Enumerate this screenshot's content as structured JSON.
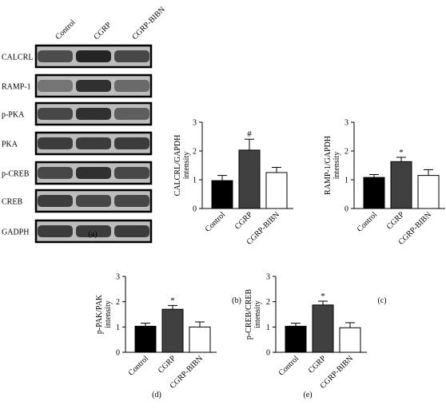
{
  "blot": {
    "lanes": [
      "Control",
      "CGRP",
      "CGRP-BIBN"
    ],
    "rows": [
      {
        "label": "CALCRL",
        "intensity": [
          0.78,
          0.95,
          0.8
        ]
      },
      {
        "label": "RAMP-1",
        "intensity": [
          0.6,
          0.9,
          0.65
        ]
      },
      {
        "label": "p-PKA",
        "intensity": [
          0.8,
          0.9,
          0.7
        ]
      },
      {
        "label": "PKA",
        "intensity": [
          0.85,
          0.85,
          0.85
        ]
      },
      {
        "label": "p-CREB",
        "intensity": [
          0.8,
          0.9,
          0.8
        ]
      },
      {
        "label": "CREB",
        "intensity": [
          0.85,
          0.8,
          0.8
        ]
      },
      {
        "label": "GADPH",
        "intensity": [
          0.85,
          0.85,
          0.85
        ]
      }
    ],
    "panel_label": "(a)"
  },
  "chart_data": [
    {
      "type": "bar",
      "panel_label": "(b)",
      "categories": [
        "Control",
        "CGRP",
        "CGRP-BIBN"
      ],
      "values": [
        0.97,
        2.03,
        1.25
      ],
      "errors": [
        0.18,
        0.38,
        0.18
      ],
      "significance": [
        "",
        "#",
        ""
      ],
      "ylabel": [
        "CALCRL/GAPDH",
        "intensity"
      ],
      "ylim": [
        0,
        3
      ],
      "yticks": [
        "0",
        "1",
        "2",
        "3"
      ],
      "colors": [
        "#000000",
        "#404040",
        "#ffffff"
      ]
    },
    {
      "type": "bar",
      "panel_label": "(c)",
      "categories": [
        "Control",
        "CGRP",
        "CGRP-BIBN"
      ],
      "values": [
        1.08,
        1.63,
        1.15
      ],
      "errors": [
        0.1,
        0.15,
        0.2
      ],
      "significance": [
        "",
        "*",
        ""
      ],
      "ylabel": [
        "RAMP-1/GAPDH",
        "intensity"
      ],
      "ylim": [
        0,
        3
      ],
      "yticks": [
        "0",
        "1",
        "2",
        "3"
      ],
      "colors": [
        "#000000",
        "#404040",
        "#ffffff"
      ]
    },
    {
      "type": "bar",
      "panel_label": "(d)",
      "categories": [
        "Control",
        "CGRP",
        "CGRP-BIBN"
      ],
      "values": [
        1.03,
        1.7,
        1.0
      ],
      "errors": [
        0.12,
        0.15,
        0.2
      ],
      "significance": [
        "",
        "*",
        ""
      ],
      "ylabel": [
        "p-PAK/PAK",
        "intensity"
      ],
      "ylim": [
        0,
        3
      ],
      "yticks": [
        "0",
        "1",
        "2",
        "3"
      ],
      "colors": [
        "#000000",
        "#404040",
        "#ffffff"
      ]
    },
    {
      "type": "bar",
      "panel_label": "(e)",
      "categories": [
        "Control",
        "CGRP",
        "CGRP-BIBN"
      ],
      "values": [
        1.03,
        1.87,
        0.97
      ],
      "errors": [
        0.12,
        0.15,
        0.2
      ],
      "significance": [
        "",
        "*",
        ""
      ],
      "ylabel": [
        "p-CREB/CREB",
        "intensity"
      ],
      "ylim": [
        0,
        3
      ],
      "yticks": [
        "0",
        "1",
        "2",
        "3"
      ],
      "colors": [
        "#000000",
        "#404040",
        "#ffffff"
      ]
    }
  ]
}
